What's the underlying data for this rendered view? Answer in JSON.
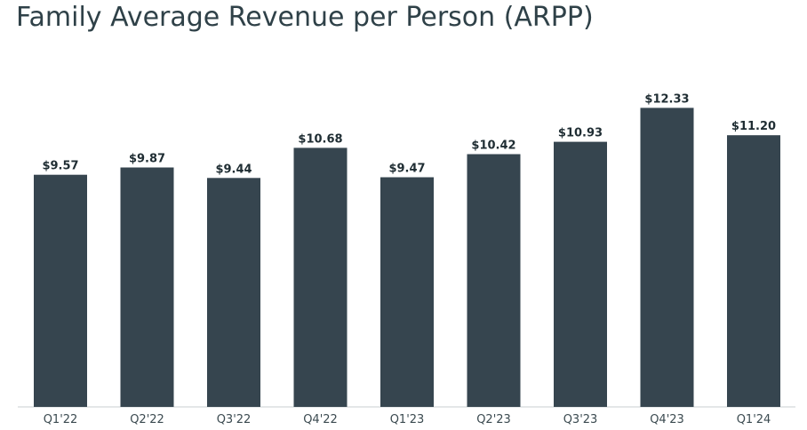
{
  "chart_data": {
    "type": "bar",
    "title": "Family Average Revenue per Person (ARPP)",
    "categories": [
      "Q1'22",
      "Q2'22",
      "Q3'22",
      "Q4'22",
      "Q1'23",
      "Q2'23",
      "Q3'23",
      "Q4'23",
      "Q1'24"
    ],
    "values": [
      9.57,
      9.87,
      9.44,
      10.68,
      9.47,
      10.42,
      10.93,
      12.33,
      11.2
    ],
    "data_labels": [
      "$9.57",
      "$9.87",
      "$9.44",
      "$10.68",
      "$9.47",
      "$10.42",
      "$10.93",
      "$12.33",
      "$11.20"
    ],
    "xlabel": "",
    "ylabel": "",
    "ylim": [
      0,
      14
    ],
    "grid": false,
    "bar_color": "#36454f"
  }
}
